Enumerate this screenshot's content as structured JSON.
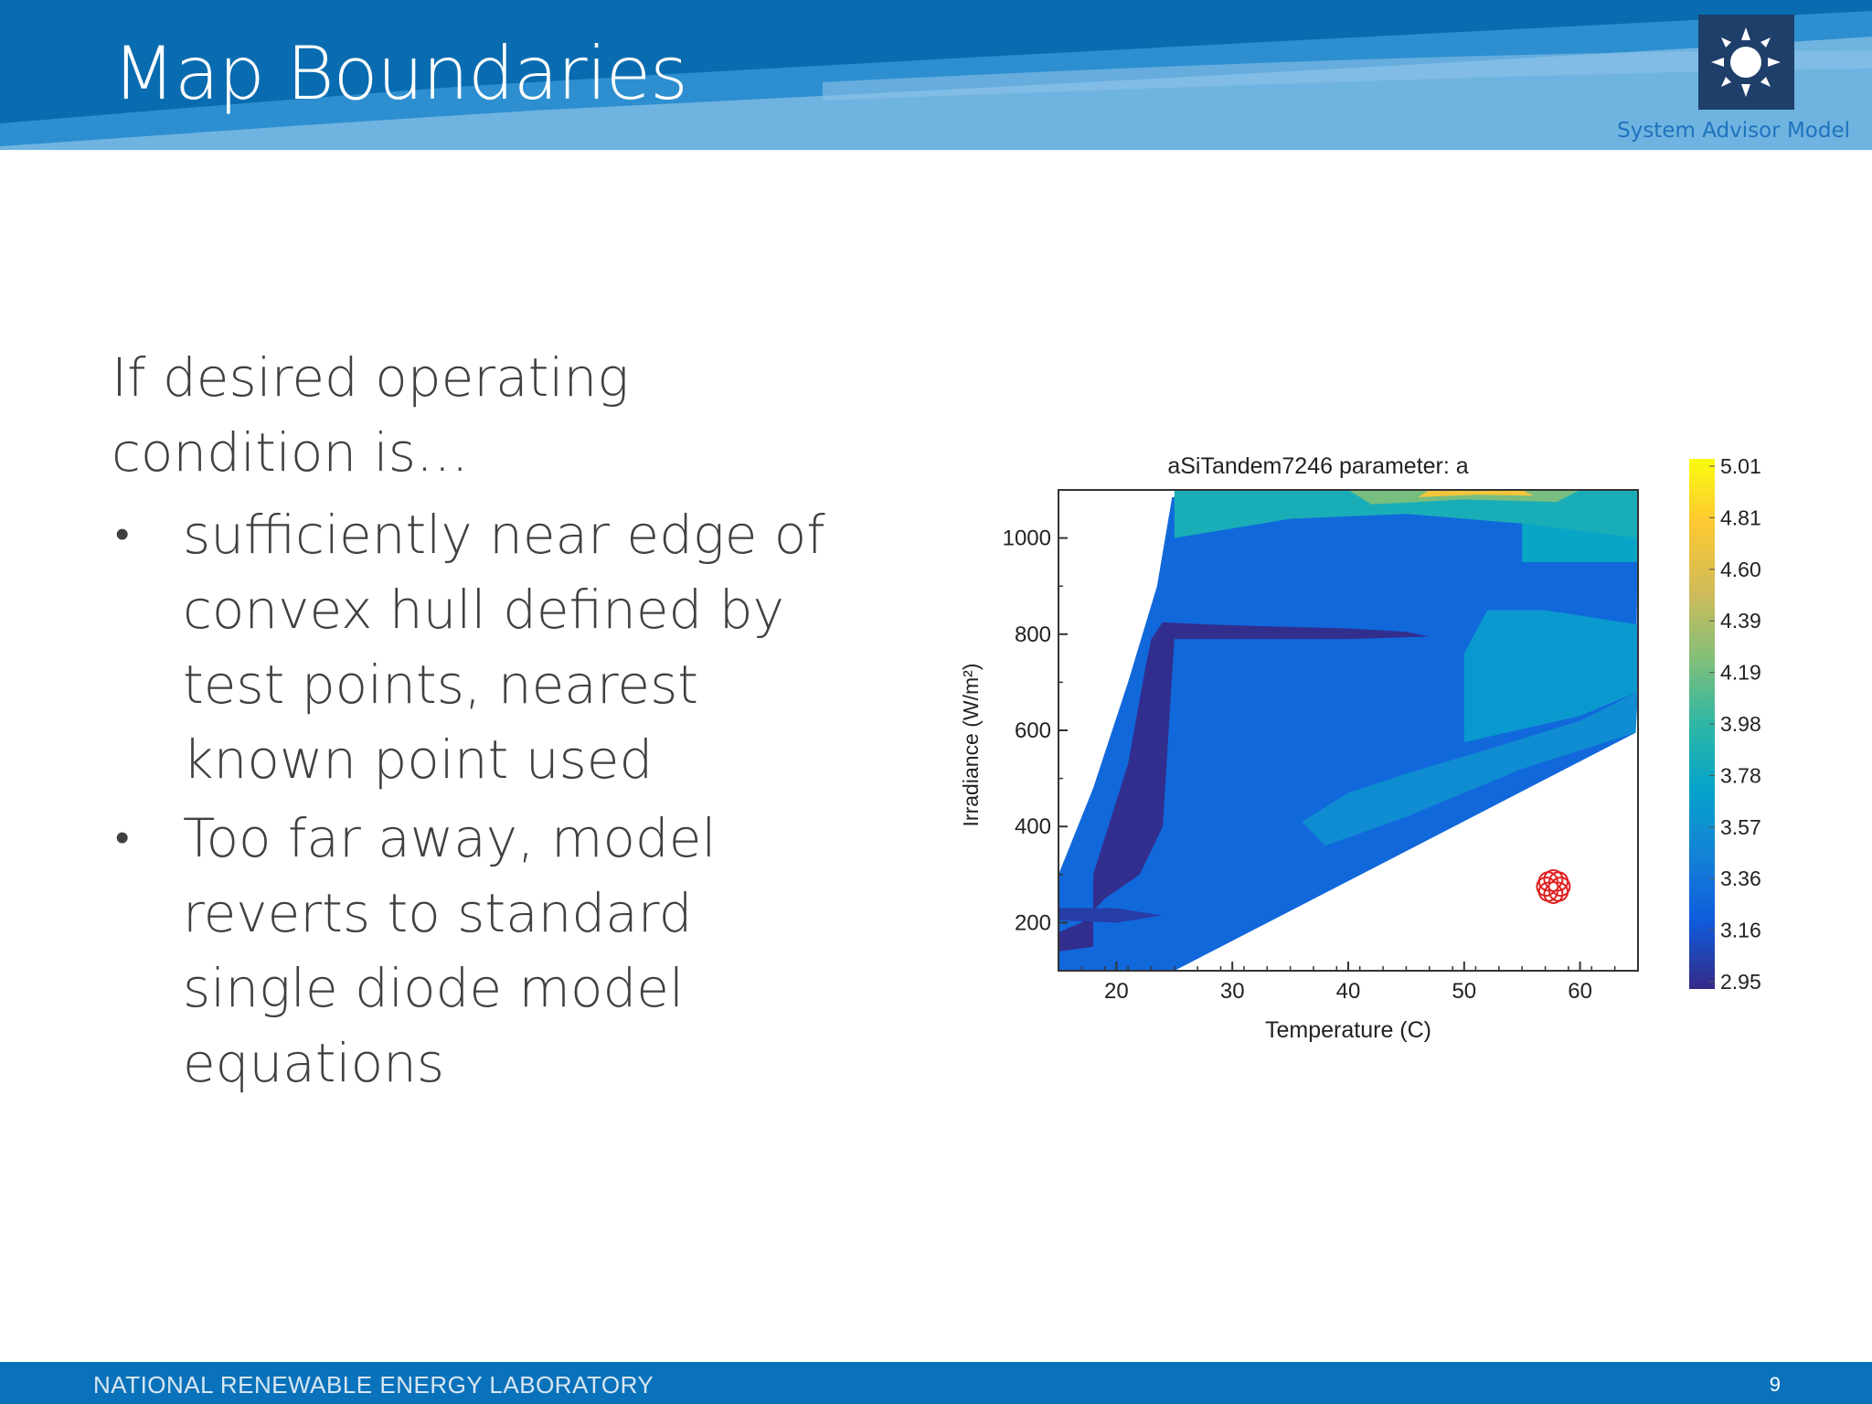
{
  "header": {
    "title": "Map Boundaries",
    "brand_label": "System Advisor Model",
    "colors": {
      "dark": "#0a6cb0",
      "mid": "#2d8fd0",
      "light": "#6fb3e0",
      "logo_bg": "#1f3f6b"
    }
  },
  "content": {
    "lead": "If desired operating condition is…",
    "bullets": [
      "sufficiently near edge of convex hull defined by test points, nearest known point used",
      "Too far away, model reverts to standard single diode model equations"
    ]
  },
  "chart_data": {
    "type": "heatmap",
    "title": "aSiTandem7246 parameter: a",
    "xlabel": "Temperature (C)",
    "ylabel": "Irradiance (W/m²)",
    "xlim": [
      15,
      65
    ],
    "ylim": [
      100,
      1100
    ],
    "xticks": [
      20,
      30,
      40,
      50,
      60
    ],
    "yticks": [
      200,
      400,
      600,
      800,
      1000
    ],
    "colorbar": {
      "ticks": [
        "5.01",
        "4.81",
        "4.60",
        "4.39",
        "4.19",
        "3.98",
        "3.78",
        "3.57",
        "3.36",
        "3.16",
        "2.95"
      ],
      "min": 2.95,
      "max": 5.01
    },
    "colormap": "parula",
    "regions": [
      {
        "value": 3.3,
        "polygon": [
          [
            15,
            100
          ],
          [
            25,
            100
          ],
          [
            64.8,
            595
          ],
          [
            65,
            1085
          ],
          [
            24.8,
            1085
          ],
          [
            23.5,
            900
          ],
          [
            21,
            700
          ],
          [
            18,
            480
          ],
          [
            15,
            300
          ]
        ]
      },
      {
        "value": 3.55,
        "polygon": [
          [
            38,
            360
          ],
          [
            45,
            420
          ],
          [
            50,
            470
          ],
          [
            55,
            520
          ],
          [
            64.8,
            595
          ],
          [
            65,
            680
          ],
          [
            60,
            620
          ],
          [
            52,
            560
          ],
          [
            45,
            510
          ],
          [
            40,
            470
          ],
          [
            36,
            410
          ]
        ]
      },
      {
        "value": 3.65,
        "polygon": [
          [
            50,
            575
          ],
          [
            60,
            630
          ],
          [
            65,
            680
          ],
          [
            65,
            820
          ],
          [
            57,
            850
          ],
          [
            52,
            850
          ],
          [
            50,
            760
          ]
        ]
      },
      {
        "value": 3.75,
        "polygon": [
          [
            55,
            950
          ],
          [
            65,
            950
          ],
          [
            65,
            1090
          ],
          [
            55,
            1060
          ]
        ]
      },
      {
        "value": 3.85,
        "polygon": [
          [
            25,
            1000
          ],
          [
            35,
            1040
          ],
          [
            45,
            1050
          ],
          [
            55,
            1030
          ],
          [
            65,
            1000
          ],
          [
            65,
            1100
          ],
          [
            25,
            1100
          ]
        ]
      },
      {
        "value": 4.2,
        "polygon": [
          [
            42,
            1070
          ],
          [
            50,
            1080
          ],
          [
            58,
            1075
          ],
          [
            60,
            1100
          ],
          [
            40,
            1100
          ]
        ]
      },
      {
        "value": 4.7,
        "polygon": [
          [
            46,
            1085
          ],
          [
            51,
            1090
          ],
          [
            56,
            1088
          ],
          [
            55,
            1100
          ],
          [
            47,
            1100
          ]
        ]
      },
      {
        "value": 2.97,
        "polygon": [
          [
            15,
            140
          ],
          [
            18,
            150
          ],
          [
            18,
            300
          ],
          [
            21,
            530
          ],
          [
            22.5,
            730
          ],
          [
            23,
            790
          ],
          [
            24,
            825
          ],
          [
            28,
            820
          ],
          [
            35,
            815
          ],
          [
            40,
            812
          ],
          [
            45,
            805
          ],
          [
            47,
            795
          ],
          [
            40,
            790
          ],
          [
            33,
            790
          ],
          [
            25,
            790
          ],
          [
            24.5,
            600
          ],
          [
            24,
            400
          ],
          [
            22,
            300
          ],
          [
            19,
            250
          ],
          [
            17,
            200
          ],
          [
            15,
            180
          ]
        ]
      },
      {
        "value": 3.05,
        "polygon": [
          [
            15,
            230
          ],
          [
            20,
            230
          ],
          [
            24,
            215
          ],
          [
            20,
            200
          ],
          [
            15,
            205
          ]
        ]
      }
    ],
    "marker": {
      "x": 57.7,
      "y": 275,
      "label": "spiral-logo"
    }
  },
  "footer": {
    "org": "NATIONAL RENEWABLE ENERGY LABORATORY",
    "page": "9"
  }
}
